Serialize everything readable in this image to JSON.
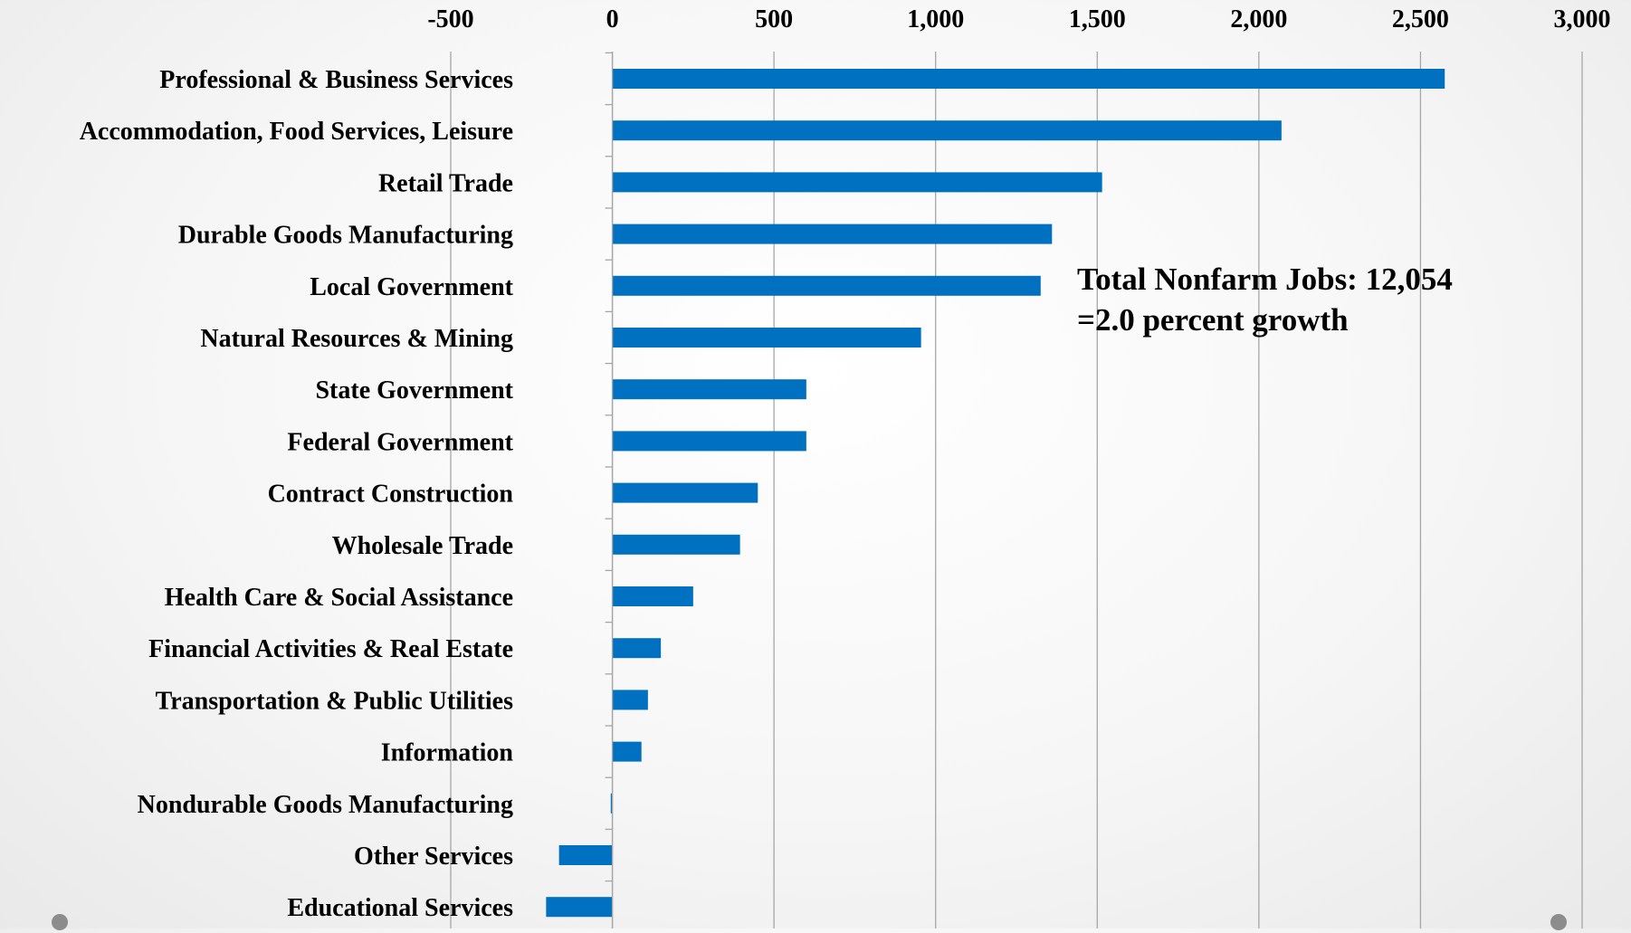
{
  "chart_data": {
    "type": "bar",
    "orientation": "horizontal",
    "title": "",
    "xlabel": "",
    "ylabel": "",
    "xlim": [
      -500,
      3000
    ],
    "x_ticks": [
      -500,
      0,
      500,
      1000,
      1500,
      2000,
      2500,
      3000
    ],
    "x_tick_labels": [
      "-500",
      "0",
      "500",
      "1,000",
      "1,500",
      "2,000",
      "2,500",
      "3,000"
    ],
    "tick_position": "top",
    "grid": true,
    "bar_color": "#0070C0",
    "categories": [
      "Professional & Business Services",
      "Accommodation, Food Services, Leisure",
      "Retail Trade",
      "Durable Goods Manufacturing",
      "Local Government",
      "Natural Resources & Mining",
      "State Government",
      "Federal Government",
      "Contract Construction",
      "Wholesale Trade",
      "Health Care & Social Assistance",
      "Financial Activities & Real Estate",
      "Transportation & Public Utilities",
      "Information",
      "Nondurable Goods Manufacturing",
      "Other Services",
      "Educational Services"
    ],
    "values": [
      2575,
      2070,
      1515,
      1360,
      1325,
      955,
      600,
      600,
      450,
      395,
      250,
      150,
      110,
      90,
      -5,
      -165,
      -205
    ],
    "annotation": {
      "lines": [
        "Total Nonfarm Jobs: 12,054",
        "=2.0 percent growth"
      ]
    }
  }
}
